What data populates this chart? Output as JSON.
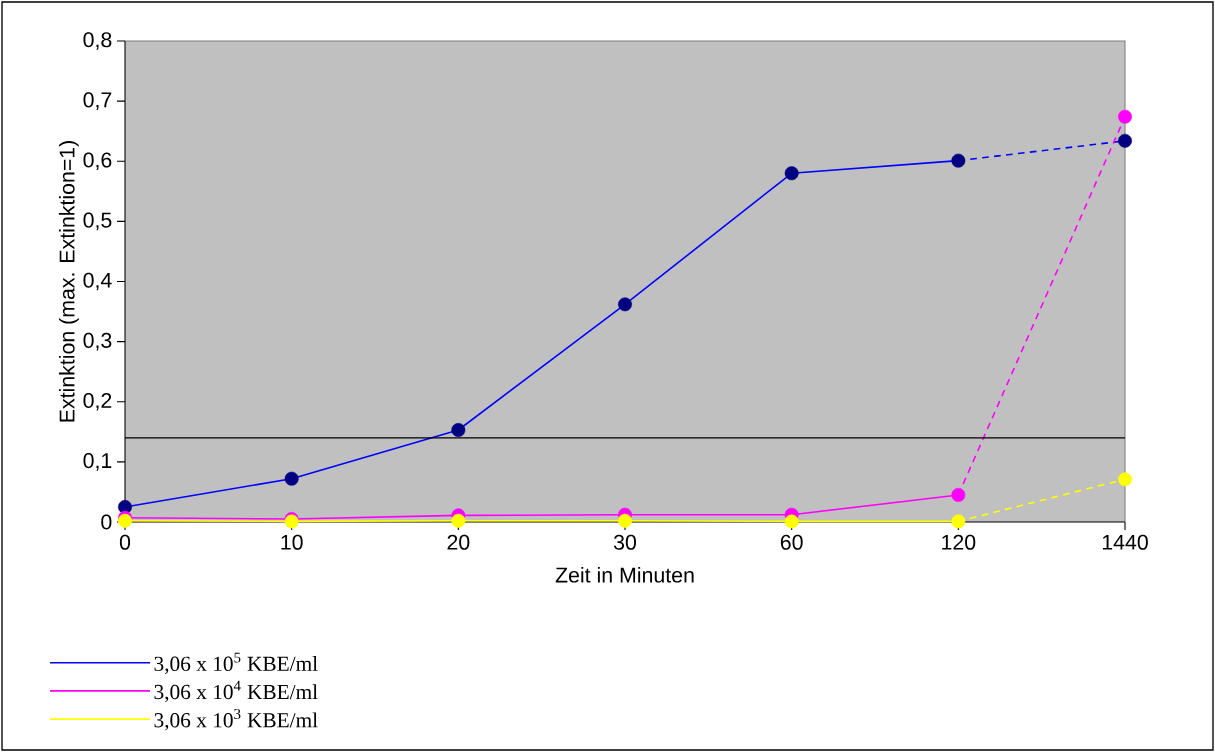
{
  "chart_data": {
    "type": "line",
    "xlabel": "Zeit in Minuten",
    "ylabel": "Extinktion (max. Extinktion=1)",
    "categories": [
      "0",
      "10",
      "20",
      "30",
      "60",
      "120",
      "1440"
    ],
    "series": [
      {
        "name": "3,06 x 10$^{5}$ KBE/ml",
        "color": "#0000ff",
        "line_style": "solid",
        "colors": [
          "#000080",
          "#000080",
          "#000080",
          "#000080",
          "#000080",
          "#000080",
          null
        ],
        "values": [
          0.025,
          0.072,
          0.153,
          0.362,
          0.58,
          0.601,
          null
        ]
      },
      {
        "name": "3,06 x 10$^{4}$ KBE/ml",
        "color": "#ff00ff",
        "line_style": "solid",
        "colors": [
          "#ff00ff",
          "#ff00ff",
          "#ff00ff",
          "#ff00ff",
          "#ff00ff",
          "#ff00ff",
          null
        ],
        "values": [
          0.007,
          0.005,
          0.011,
          0.012,
          0.012,
          0.045,
          null
        ]
      },
      {
        "name": "3,06 x 10$^{3}$ KBE/ml",
        "color": "#ffff00",
        "line_style": "solid",
        "colors": [
          "#ffff00",
          "#ffff00",
          "#ffff00",
          "#ffff00",
          "#ffff00",
          "#ffff00",
          null
        ],
        "values": [
          0.002,
          0.001,
          0.002,
          0.002,
          0.001,
          0.001,
          null
        ]
      },
      {
        "color": "#0000ff",
        "line_style": "dashed",
        "colors": [
          null,
          null,
          null,
          null,
          null,
          null,
          "#000080"
        ],
        "values": [
          null,
          null,
          null,
          null,
          null,
          0.601,
          0.634
        ]
      },
      {
        "color": "#ff00ff",
        "line_style": "dashed",
        "colors": [
          null,
          null,
          null,
          null,
          null,
          null,
          "#ff00ff"
        ],
        "values": [
          null,
          null,
          null,
          null,
          null,
          0.045,
          0.674
        ]
      },
      {
        "color": "#ffff00",
        "line_style": "dashed",
        "colors": [
          null,
          null,
          null,
          null,
          null,
          null,
          "#ffff00"
        ],
        "values": [
          null,
          null,
          null,
          null,
          null,
          0.001,
          0.071
        ]
      }
    ],
    "ylim": [
      0,
      0.8
    ],
    "yticks": [
      0,
      {
        "value": 0.1,
        "label": "0,1"
      },
      {
        "value": 0.2,
        "label": "0,2"
      },
      {
        "value": 0.3,
        "label": "0,3"
      },
      {
        "value": 0.4,
        "label": "0,4"
      },
      {
        "value": 0.5,
        "label": "0,5"
      },
      {
        "value": 0.6,
        "label": "0,6"
      },
      {
        "value": 0.7,
        "label": "0,7"
      },
      {
        "value": 0.8,
        "label": "0,8"
      }
    ],
    "ref_lines": [
      {
        "axis": "y",
        "value": 0.14,
        "color": "#000000"
      }
    ],
    "grid": false,
    "legend": "bottom left",
    "marker": "circle"
  }
}
